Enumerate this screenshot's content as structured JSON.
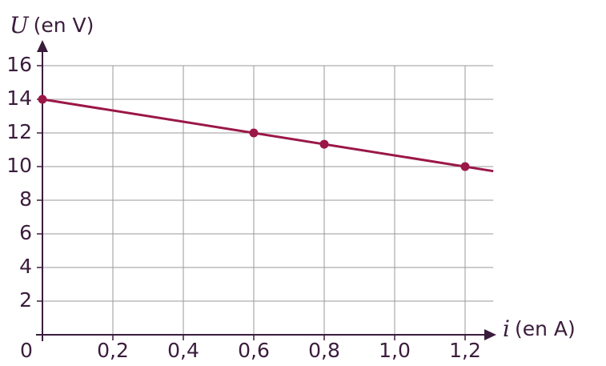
{
  "chart_data": {
    "type": "line",
    "x_label": {
      "symbol": "i",
      "unit": "(en A)"
    },
    "y_label": {
      "symbol": "U",
      "unit": "(en V)"
    },
    "xlim": [
      0,
      1.28
    ],
    "ylim": [
      0,
      16
    ],
    "xticks": [
      0,
      {
        "value": 0.2,
        "label": "0,2"
      },
      {
        "value": 0.4,
        "label": "0,4"
      },
      {
        "value": 0.6,
        "label": "0,6"
      },
      {
        "value": 0.8,
        "label": "0,8"
      },
      {
        "value": 1.0,
        "label": "1,0"
      },
      {
        "value": 1.2,
        "label": "1,2"
      }
    ],
    "yticks": [
      2,
      4,
      6,
      8,
      10,
      12,
      14,
      16
    ],
    "grid": true,
    "series": [
      {
        "color": "#9b1747",
        "x": [
          0,
          1.28
        ],
        "values": [
          14,
          9.73
        ],
        "markers": false
      },
      {
        "color": "#9b1747",
        "x": [
          0,
          0.6,
          0.8,
          1.2
        ],
        "values": [
          14,
          12,
          11.33,
          10
        ],
        "markers": true,
        "line": false
      }
    ]
  }
}
